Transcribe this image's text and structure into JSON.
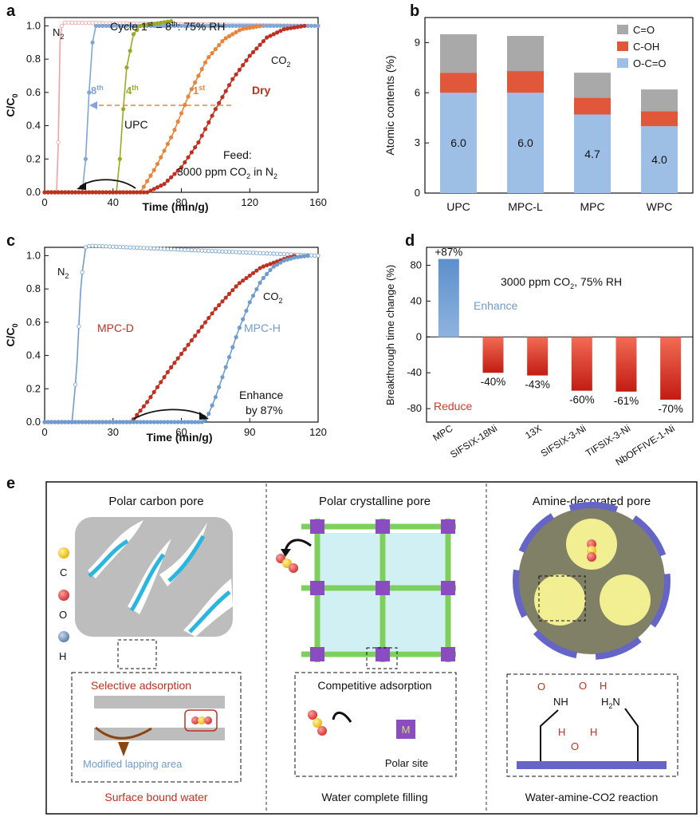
{
  "colors": {
    "dry": "#c0301f",
    "c1": "#e8853a",
    "c4": "#9aaa22",
    "c8": "#7fa6d6",
    "n2": "#f3a0a0",
    "mpcd": "#c0301f",
    "mpch": "#6f9ccd",
    "c_eq_o": "#a9a9a9",
    "c_oh": "#e0573a",
    "ocoo": "#9dbfe6",
    "enhance": "#6f9ccd",
    "reduce": "#d23a28",
    "amine": "#f2ef93",
    "ring": "#6565c8",
    "frame": "#7dd05c",
    "node": "#8a4cc0"
  },
  "panel_a": {
    "letter": "a",
    "header": "Cycle 1",
    "header_sup1": "st",
    "header_mid": " – 8",
    "header_sup2": "th",
    "header_tail": ": 75% RH",
    "n2": "N",
    "n2_sub": "2",
    "co2": "CO",
    "co2_sub": "2",
    "l8": "8",
    "l8_sup": "th",
    "l4": "4",
    "l4_sup": "th",
    "l1": "1",
    "l1_sup": "st",
    "ldry": "Dry",
    "upc": "UPC",
    "feed1": "Feed:",
    "feed2a": "3000 ppm CO",
    "feed2_sub": "2",
    "feed2b": " in N",
    "feed2_sub2": "2",
    "ylabel": "C/C",
    "ylabel_sub": "0",
    "xlabel": "Time (min/g)",
    "xticks": [
      "0",
      "40",
      "80",
      "120",
      "160"
    ],
    "yticks": [
      "0.0",
      "0.2",
      "0.4",
      "0.6",
      "0.8",
      "1.0"
    ]
  },
  "panel_c": {
    "letter": "c",
    "n2": "N",
    "n2_sub": "2",
    "co2": "CO",
    "co2_sub": "2",
    "mpcd": "MPC-D",
    "mpch": "MPC-H",
    "enh1": "Enhance",
    "enh2": "by 87%",
    "ylabel": "C/C",
    "ylabel_sub": "0",
    "xlabel": "Time (min/g)",
    "xticks": [
      "0",
      "30",
      "60",
      "90",
      "120"
    ],
    "yticks": [
      "0.0",
      "0.2",
      "0.4",
      "0.6",
      "0.8",
      "1.0"
    ]
  },
  "panel_b": {
    "letter": "b",
    "ylabel": "Atomic contents (%)",
    "yticks": [
      "0",
      "3",
      "6",
      "9"
    ],
    "legend": [
      "C=O",
      "C-OH",
      "O-C=O"
    ]
  },
  "panel_d": {
    "letter": "d",
    "ylabel": "Breakthrough time change (%)",
    "yticks": [
      "80",
      "40",
      "0",
      "-40",
      "-80"
    ],
    "note": "3000 ppm CO",
    "note_sub": "2",
    "note_tail": ", 75% RH",
    "enhance": "Enhance",
    "reduce": "Reduce"
  },
  "panel_e": {
    "letter": "e",
    "t1": "Polar carbon pore",
    "t2": "Polar crystalline pore",
    "t3": "Amine-decorated pore",
    "leg_c": "C",
    "leg_o": "O",
    "leg_h": "H",
    "sel": "Selective adsorption",
    "mod": "Modified lapping area",
    "bot1": "Surface bound water",
    "comp": "Competitive adsorption",
    "polar": "Polar site",
    "metal": "M",
    "bot2": "Water complete filling",
    "bot3": "Water-amine-CO2 reaction",
    "amine_nh": "NH",
    "amine_h2n": "H",
    "amine_h2n_sub": "2",
    "amine_n": "N",
    "h": "H",
    "o": "O",
    "ring_label": "HN"
  },
  "chart_data": [
    {
      "type": "line",
      "panel": "a",
      "title": "",
      "xlabel": "Time (min/g)",
      "ylabel": "C/C0",
      "xlim": [
        0,
        160
      ],
      "ylim": [
        0,
        1.05
      ],
      "series": [
        {
          "name": "N2",
          "x": [
            0,
            7,
            8,
            9,
            10,
            12,
            160
          ],
          "y": [
            0,
            0,
            0.3,
            0.9,
            1.0,
            1.02,
            1.0
          ]
        },
        {
          "name": "8th",
          "x": [
            0,
            22,
            24,
            26,
            28,
            30,
            160
          ],
          "y": [
            0,
            0,
            0.2,
            0.6,
            0.9,
            1.0,
            1.0
          ]
        },
        {
          "name": "4th",
          "x": [
            0,
            42,
            44,
            46,
            48,
            52,
            56,
            75
          ],
          "y": [
            0,
            0,
            0.2,
            0.5,
            0.75,
            0.95,
            1.0,
            1.03
          ]
        },
        {
          "name": "1st",
          "x": [
            0,
            56,
            65,
            75,
            85,
            95,
            105,
            115,
            127
          ],
          "y": [
            0,
            0,
            0.15,
            0.35,
            0.6,
            0.8,
            0.92,
            0.98,
            1.0
          ]
        },
        {
          "name": "Dry",
          "x": [
            0,
            60,
            70,
            80,
            90,
            100,
            110,
            120,
            130,
            140,
            152
          ],
          "y": [
            0,
            0,
            0.05,
            0.15,
            0.3,
            0.5,
            0.68,
            0.82,
            0.93,
            0.98,
            1.0
          ]
        }
      ]
    },
    {
      "type": "bar",
      "panel": "b",
      "ylabel": "Atomic contents (%)",
      "ylim": [
        0,
        10.5
      ],
      "categories": [
        "UPC",
        "MPC-L",
        "MPC",
        "WPC"
      ],
      "series": [
        {
          "name": "O-C=O",
          "values": [
            6.0,
            6.0,
            4.7,
            4.0
          ]
        },
        {
          "name": "C-OH",
          "values": [
            1.2,
            1.3,
            1.0,
            0.9
          ]
        },
        {
          "name": "C=O",
          "values": [
            2.3,
            2.1,
            1.5,
            1.3
          ]
        }
      ],
      "data_labels": [
        "6.0",
        "6.0",
        "4.7",
        "4.0"
      ]
    },
    {
      "type": "line",
      "panel": "c",
      "xlabel": "Time (min/g)",
      "ylabel": "C/C0",
      "xlim": [
        0,
        120
      ],
      "ylim": [
        0,
        1.05
      ],
      "series": [
        {
          "name": "N2",
          "x": [
            0,
            12,
            14,
            16,
            18,
            20,
            120
          ],
          "y": [
            0,
            0,
            0.3,
            0.85,
            1.05,
            1.06,
            1.0
          ]
        },
        {
          "name": "MPC-D",
          "x": [
            0,
            38,
            45,
            55,
            65,
            75,
            85,
            95,
            105,
            110
          ],
          "y": [
            0,
            0,
            0.12,
            0.32,
            0.5,
            0.68,
            0.83,
            0.93,
            0.98,
            1.0
          ]
        },
        {
          "name": "MPC-H",
          "x": [
            0,
            70,
            72,
            75,
            80,
            85,
            90,
            95,
            100,
            105,
            110,
            116
          ],
          "y": [
            0,
            0,
            0.05,
            0.15,
            0.35,
            0.55,
            0.72,
            0.85,
            0.93,
            0.97,
            0.99,
            1.0
          ]
        }
      ]
    },
    {
      "type": "bar",
      "panel": "d",
      "ylabel": "Breakthrough time change (%)",
      "ylim": [
        -95,
        100
      ],
      "categories": [
        "MPC",
        "SIFSIX-18Ni",
        "13X",
        "SIFSIX-3-Ni",
        "TIFSIX-3-Ni",
        "NbOFFIVE-1-Ni"
      ],
      "values": [
        87,
        -40,
        -43,
        -60,
        -61,
        -70
      ],
      "data_labels": [
        "+87%",
        "-40%",
        "-43%",
        "-60%",
        "-61%",
        "-70%"
      ]
    }
  ]
}
